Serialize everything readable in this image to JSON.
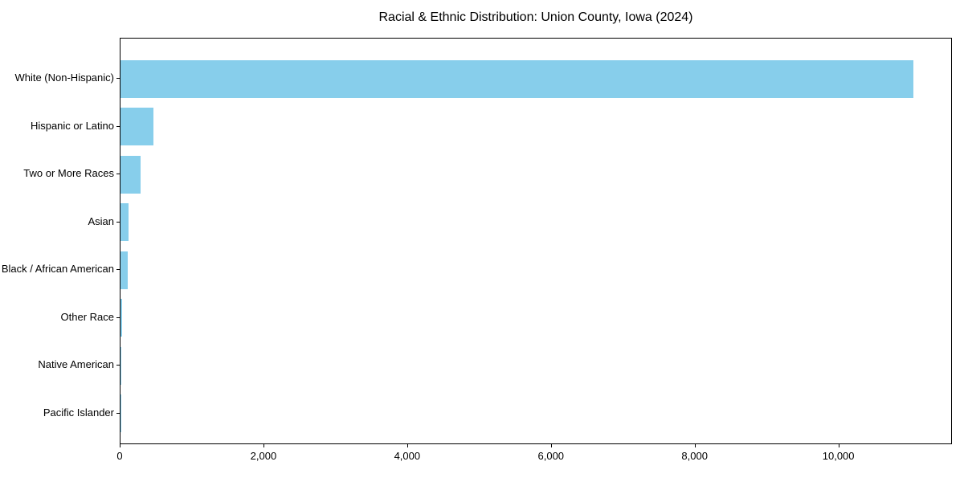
{
  "chart_data": {
    "type": "bar",
    "orientation": "horizontal",
    "title": "Racial & Ethnic Distribution: Union County, Iowa (2024)",
    "categories": [
      "White (Non-Hispanic)",
      "Hispanic or Latino",
      "Two or More Races",
      "Asian",
      "Black / African American",
      "Other Race",
      "Native American",
      "Pacific Islander"
    ],
    "values": [
      11030,
      455,
      285,
      112,
      100,
      20,
      10,
      5
    ],
    "bar_color": "#87CEEB",
    "xlabel": "",
    "ylabel": "",
    "xlim": [
      0,
      11580
    ],
    "xticks": [
      0,
      2000,
      4000,
      6000,
      8000,
      10000
    ],
    "xtick_labels": [
      "0",
      "2,000",
      "4,000",
      "6,000",
      "8,000",
      "10,000"
    ],
    "grid": false,
    "legend": null,
    "plot_background": "#ffffff",
    "spine_color": "#000000"
  }
}
